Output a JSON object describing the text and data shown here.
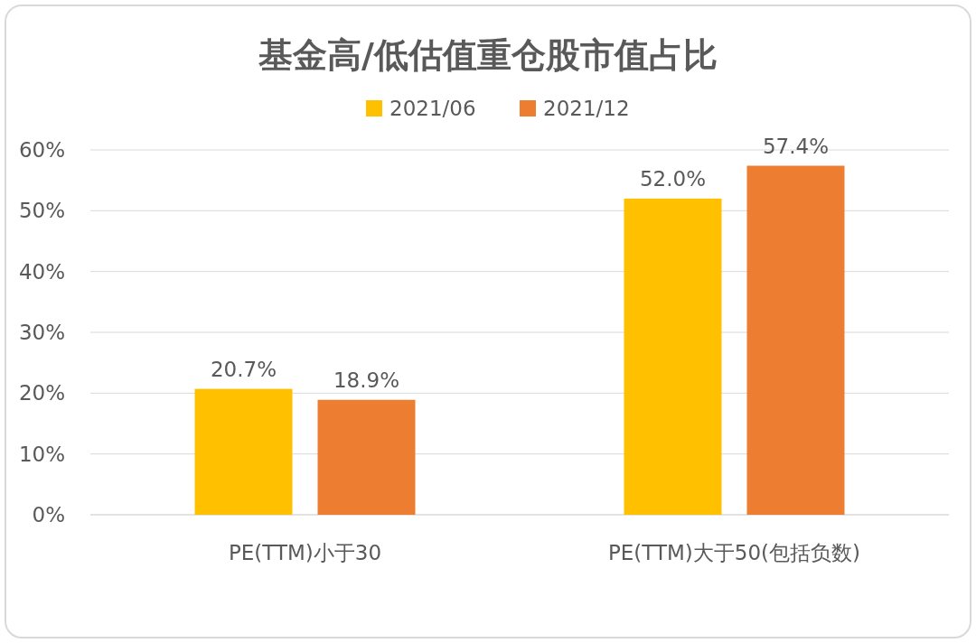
{
  "chart_data": {
    "type": "bar",
    "title": "基金高/低估值重仓股市值占比",
    "categories": [
      "PE(TTM)小于30",
      "PE(TTM)大于50(包括负数)"
    ],
    "series": [
      {
        "name": "2021/06",
        "color": "#ffc000",
        "values": [
          20.7,
          52.0
        ],
        "value_labels": [
          "20.7%",
          "52.0%"
        ]
      },
      {
        "name": "2021/12",
        "color": "#ed7d31",
        "values": [
          18.9,
          57.4
        ],
        "value_labels": [
          "18.9%",
          "57.4%"
        ]
      }
    ],
    "ylim": [
      0,
      60
    ],
    "yticks": [
      {
        "value": 0,
        "label": "0%"
      },
      {
        "value": 10,
        "label": "10%"
      },
      {
        "value": 20,
        "label": "20%"
      },
      {
        "value": 30,
        "label": "30%"
      },
      {
        "value": 40,
        "label": "40%"
      },
      {
        "value": 50,
        "label": "50%"
      },
      {
        "value": 60,
        "label": "60%"
      }
    ],
    "grid": "y",
    "legend": "top"
  }
}
